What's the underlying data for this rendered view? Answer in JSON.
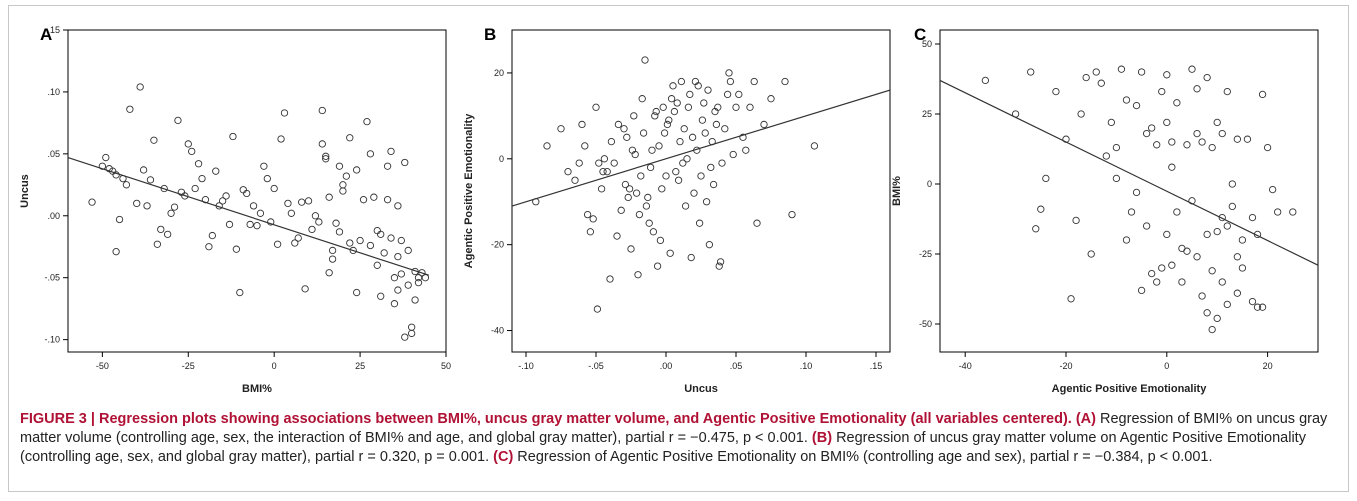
{
  "chart_data": [
    {
      "panel_letter": "A",
      "type": "scatter",
      "xlabel": "BMI%",
      "ylabel": "Uncus",
      "xlim": [
        -60,
        50
      ],
      "ylim": [
        -0.11,
        0.15
      ],
      "xticks": [
        -50,
        -25,
        0,
        25,
        50
      ],
      "yticks": [
        -0.1,
        -0.05,
        0.0,
        0.05,
        0.1,
        0.15
      ],
      "xtick_labels": [
        "-50",
        "-25",
        "0",
        "25",
        "50"
      ],
      "ytick_labels": [
        "-.10",
        "-.05",
        ".00",
        ".05",
        ".10",
        ".15"
      ],
      "fit_line": [
        [
          -60,
          0.047
        ],
        [
          45,
          -0.048
        ]
      ],
      "points": [
        [
          -53,
          0.011
        ],
        [
          -50,
          0.04
        ],
        [
          -49,
          0.047
        ],
        [
          -48,
          0.038
        ],
        [
          -47,
          0.036
        ],
        [
          -46,
          0.033
        ],
        [
          -46,
          -0.029
        ],
        [
          -45,
          -0.003
        ],
        [
          -44,
          0.03
        ],
        [
          -43,
          0.025
        ],
        [
          -42,
          0.086
        ],
        [
          -40,
          0.01
        ],
        [
          -39,
          0.104
        ],
        [
          -38,
          0.037
        ],
        [
          -37,
          0.008
        ],
        [
          -36,
          0.029
        ],
        [
          -35,
          0.061
        ],
        [
          -34,
          -0.023
        ],
        [
          -33,
          -0.011
        ],
        [
          -32,
          0.022
        ],
        [
          -31,
          -0.015
        ],
        [
          -30,
          0.002
        ],
        [
          -29,
          0.007
        ],
        [
          -28,
          0.077
        ],
        [
          -27,
          0.019
        ],
        [
          -26,
          0.016
        ],
        [
          -25,
          0.058
        ],
        [
          -24,
          0.052
        ],
        [
          -23,
          0.022
        ],
        [
          -22,
          0.042
        ],
        [
          -21,
          0.03
        ],
        [
          -20,
          0.013
        ],
        [
          -19,
          -0.025
        ],
        [
          -18,
          -0.016
        ],
        [
          -17,
          0.036
        ],
        [
          -16,
          0.008
        ],
        [
          -15,
          0.012
        ],
        [
          -14,
          0.016
        ],
        [
          -13,
          -0.007
        ],
        [
          -12,
          0.064
        ],
        [
          -11,
          -0.027
        ],
        [
          -10,
          -0.062
        ],
        [
          -9,
          0.021
        ],
        [
          -8,
          0.018
        ],
        [
          -7,
          -0.007
        ],
        [
          -6,
          0.008
        ],
        [
          -5,
          -0.008
        ],
        [
          -4,
          0.002
        ],
        [
          -3,
          0.04
        ],
        [
          -2,
          0.03
        ],
        [
          -1,
          -0.005
        ],
        [
          0,
          0.022
        ],
        [
          1,
          -0.023
        ],
        [
          2,
          0.062
        ],
        [
          3,
          0.083
        ],
        [
          4,
          0.01
        ],
        [
          5,
          0.002
        ],
        [
          6,
          -0.022
        ],
        [
          7,
          -0.018
        ],
        [
          8,
          0.011
        ],
        [
          9,
          -0.059
        ],
        [
          10,
          0.012
        ],
        [
          11,
          -0.011
        ],
        [
          12,
          0.0
        ],
        [
          13,
          -0.005
        ],
        [
          14,
          0.085
        ],
        [
          14,
          0.058
        ],
        [
          15,
          0.048
        ],
        [
          15,
          0.046
        ],
        [
          16,
          -0.046
        ],
        [
          16,
          0.015
        ],
        [
          17,
          -0.028
        ],
        [
          17,
          -0.035
        ],
        [
          18,
          -0.006
        ],
        [
          19,
          0.04
        ],
        [
          19,
          -0.013
        ],
        [
          20,
          0.025
        ],
        [
          20,
          0.02
        ],
        [
          21,
          0.032
        ],
        [
          22,
          0.063
        ],
        [
          22,
          -0.022
        ],
        [
          23,
          -0.028
        ],
        [
          24,
          0.037
        ],
        [
          24,
          -0.062
        ],
        [
          25,
          -0.02
        ],
        [
          26,
          0.013
        ],
        [
          27,
          0.076
        ],
        [
          28,
          0.05
        ],
        [
          28,
          -0.024
        ],
        [
          29,
          0.015
        ],
        [
          30,
          -0.012
        ],
        [
          30,
          -0.04
        ],
        [
          31,
          -0.015
        ],
        [
          31,
          -0.065
        ],
        [
          32,
          -0.03
        ],
        [
          33,
          0.04
        ],
        [
          33,
          0.013
        ],
        [
          34,
          0.052
        ],
        [
          34,
          -0.018
        ],
        [
          35,
          -0.05
        ],
        [
          35,
          -0.071
        ],
        [
          36,
          0.008
        ],
        [
          36,
          -0.033
        ],
        [
          36,
          -0.06
        ],
        [
          37,
          -0.02
        ],
        [
          37,
          -0.047
        ],
        [
          38,
          0.043
        ],
        [
          38,
          -0.098
        ],
        [
          39,
          -0.028
        ],
        [
          39,
          -0.056
        ],
        [
          40,
          -0.095
        ],
        [
          40,
          -0.09
        ],
        [
          41,
          -0.045
        ],
        [
          41,
          -0.068
        ],
        [
          42,
          -0.05
        ],
        [
          42,
          -0.054
        ],
        [
          43,
          -0.046
        ],
        [
          44,
          -0.05
        ]
      ]
    },
    {
      "panel_letter": "B",
      "type": "scatter",
      "xlabel": "Uncus",
      "ylabel": "Agentic Positive Emotionality",
      "xlim": [
        -0.11,
        0.16
      ],
      "ylim": [
        -45,
        30
      ],
      "xticks": [
        -0.1,
        -0.05,
        0.0,
        0.05,
        0.1,
        0.15
      ],
      "yticks": [
        -40,
        -20,
        0,
        20
      ],
      "xtick_labels": [
        "-.10",
        "-.05",
        ".00",
        ".05",
        ".10",
        ".15"
      ],
      "ytick_labels": [
        "-40",
        "-20",
        "0",
        "20"
      ],
      "fit_line": [
        [
          -0.11,
          -11
        ],
        [
          0.16,
          16
        ]
      ],
      "points": [
        [
          -0.093,
          -10
        ],
        [
          -0.085,
          3
        ],
        [
          -0.075,
          7
        ],
        [
          -0.07,
          -3
        ],
        [
          -0.065,
          -5
        ],
        [
          -0.062,
          -1
        ],
        [
          -0.06,
          8
        ],
        [
          -0.058,
          3
        ],
        [
          -0.056,
          -13
        ],
        [
          -0.054,
          -17
        ],
        [
          -0.052,
          -14
        ],
        [
          -0.05,
          12
        ],
        [
          -0.049,
          -35
        ],
        [
          -0.048,
          -1
        ],
        [
          -0.046,
          -7
        ],
        [
          -0.045,
          -3
        ],
        [
          -0.044,
          0
        ],
        [
          -0.042,
          -3
        ],
        [
          -0.04,
          -28
        ],
        [
          -0.039,
          4
        ],
        [
          -0.037,
          -1
        ],
        [
          -0.035,
          -18
        ],
        [
          -0.034,
          8
        ],
        [
          -0.032,
          -12
        ],
        [
          -0.03,
          7
        ],
        [
          -0.029,
          -6
        ],
        [
          -0.028,
          5
        ],
        [
          -0.027,
          -9
        ],
        [
          -0.026,
          -7
        ],
        [
          -0.025,
          -21
        ],
        [
          -0.024,
          2
        ],
        [
          -0.023,
          10
        ],
        [
          -0.022,
          1
        ],
        [
          -0.021,
          -8
        ],
        [
          -0.02,
          -27
        ],
        [
          -0.019,
          -13
        ],
        [
          -0.018,
          -4
        ],
        [
          -0.017,
          14
        ],
        [
          -0.016,
          6
        ],
        [
          -0.015,
          23
        ],
        [
          -0.014,
          -11
        ],
        [
          -0.013,
          -9
        ],
        [
          -0.012,
          -15
        ],
        [
          -0.011,
          -2
        ],
        [
          -0.01,
          2
        ],
        [
          -0.009,
          -17
        ],
        [
          -0.008,
          10
        ],
        [
          -0.007,
          11
        ],
        [
          -0.006,
          -25
        ],
        [
          -0.005,
          3
        ],
        [
          -0.004,
          -19
        ],
        [
          -0.003,
          -7
        ],
        [
          -0.002,
          12
        ],
        [
          -0.001,
          6
        ],
        [
          0.0,
          -4
        ],
        [
          0.001,
          8
        ],
        [
          0.002,
          9
        ],
        [
          0.003,
          -22
        ],
        [
          0.004,
          14
        ],
        [
          0.005,
          17
        ],
        [
          0.006,
          11
        ],
        [
          0.007,
          -3
        ],
        [
          0.008,
          13
        ],
        [
          0.009,
          -5
        ],
        [
          0.01,
          4
        ],
        [
          0.011,
          18
        ],
        [
          0.012,
          -1
        ],
        [
          0.013,
          7
        ],
        [
          0.014,
          -11
        ],
        [
          0.015,
          0
        ],
        [
          0.016,
          12
        ],
        [
          0.017,
          15
        ],
        [
          0.018,
          -23
        ],
        [
          0.019,
          5
        ],
        [
          0.02,
          -8
        ],
        [
          0.021,
          18
        ],
        [
          0.022,
          2
        ],
        [
          0.023,
          17
        ],
        [
          0.024,
          -15
        ],
        [
          0.025,
          -4
        ],
        [
          0.026,
          9
        ],
        [
          0.027,
          13
        ],
        [
          0.028,
          6
        ],
        [
          0.029,
          -10
        ],
        [
          0.03,
          16
        ],
        [
          0.031,
          -20
        ],
        [
          0.032,
          -2
        ],
        [
          0.033,
          4
        ],
        [
          0.034,
          -6
        ],
        [
          0.035,
          11
        ],
        [
          0.036,
          8
        ],
        [
          0.037,
          12
        ],
        [
          0.038,
          -25
        ],
        [
          0.039,
          -24
        ],
        [
          0.04,
          -1
        ],
        [
          0.042,
          7
        ],
        [
          0.044,
          15
        ],
        [
          0.045,
          20
        ],
        [
          0.046,
          18
        ],
        [
          0.048,
          1
        ],
        [
          0.05,
          12
        ],
        [
          0.052,
          15
        ],
        [
          0.055,
          5
        ],
        [
          0.057,
          2
        ],
        [
          0.06,
          12
        ],
        [
          0.063,
          18
        ],
        [
          0.065,
          -15
        ],
        [
          0.07,
          8
        ],
        [
          0.075,
          14
        ],
        [
          0.085,
          18
        ],
        [
          0.09,
          -13
        ],
        [
          0.106,
          3
        ]
      ]
    },
    {
      "panel_letter": "C",
      "type": "scatter",
      "xlabel": "Agentic Positive Emotionality",
      "ylabel": "BMI%",
      "xlim": [
        -45,
        30
      ],
      "ylim": [
        -60,
        55
      ],
      "xticks": [
        -40,
        -20,
        0,
        20
      ],
      "yticks": [
        -50,
        -25,
        0,
        25,
        50
      ],
      "xtick_labels": [
        "-40",
        "-20",
        "0",
        "20"
      ],
      "ytick_labels": [
        "-50",
        "-25",
        "0",
        "25",
        "50"
      ],
      "fit_line": [
        [
          -45,
          37
        ],
        [
          30,
          -29
        ]
      ],
      "points": [
        [
          -36,
          37
        ],
        [
          -30,
          25
        ],
        [
          -27,
          40
        ],
        [
          -26,
          -16
        ],
        [
          -25,
          -9
        ],
        [
          -24,
          2
        ],
        [
          -22,
          33
        ],
        [
          -20,
          16
        ],
        [
          -19,
          -41
        ],
        [
          -18,
          -13
        ],
        [
          -17,
          25
        ],
        [
          -16,
          38
        ],
        [
          -15,
          -25
        ],
        [
          -14,
          40
        ],
        [
          -13,
          36
        ],
        [
          -12,
          10
        ],
        [
          -11,
          22
        ],
        [
          -10,
          2
        ],
        [
          -10,
          13
        ],
        [
          -9,
          41
        ],
        [
          -8,
          30
        ],
        [
          -8,
          -20
        ],
        [
          -7,
          -10
        ],
        [
          -6,
          28
        ],
        [
          -6,
          -3
        ],
        [
          -5,
          40
        ],
        [
          -5,
          -38
        ],
        [
          -4,
          18
        ],
        [
          -4,
          -15
        ],
        [
          -3,
          20
        ],
        [
          -3,
          -32
        ],
        [
          -2,
          14
        ],
        [
          -2,
          -35
        ],
        [
          -1,
          33
        ],
        [
          -1,
          -30
        ],
        [
          0,
          39
        ],
        [
          0,
          22
        ],
        [
          0,
          -18
        ],
        [
          1,
          15
        ],
        [
          1,
          6
        ],
        [
          1,
          -29
        ],
        [
          2,
          29
        ],
        [
          2,
          -10
        ],
        [
          3,
          -23
        ],
        [
          3,
          -35
        ],
        [
          4,
          -24
        ],
        [
          4,
          14
        ],
        [
          5,
          41
        ],
        [
          5,
          -6
        ],
        [
          6,
          34
        ],
        [
          6,
          18
        ],
        [
          6,
          -26
        ],
        [
          7,
          15
        ],
        [
          7,
          -40
        ],
        [
          8,
          38
        ],
        [
          8,
          -18
        ],
        [
          8,
          -46
        ],
        [
          9,
          13
        ],
        [
          9,
          -31
        ],
        [
          9,
          -52
        ],
        [
          10,
          22
        ],
        [
          10,
          -48
        ],
        [
          10,
          -17
        ],
        [
          11,
          18
        ],
        [
          11,
          -12
        ],
        [
          11,
          -35
        ],
        [
          12,
          33
        ],
        [
          12,
          -15
        ],
        [
          12,
          -43
        ],
        [
          13,
          0
        ],
        [
          13,
          -8
        ],
        [
          14,
          16
        ],
        [
          14,
          -26
        ],
        [
          14,
          -39
        ],
        [
          15,
          -30
        ],
        [
          15,
          -20
        ],
        [
          16,
          16
        ],
        [
          17,
          -12
        ],
        [
          17,
          -42
        ],
        [
          18,
          -18
        ],
        [
          18,
          -44
        ],
        [
          19,
          32
        ],
        [
          19,
          -44
        ],
        [
          20,
          13
        ],
        [
          21,
          -2
        ],
        [
          22,
          -10
        ],
        [
          25,
          -10
        ]
      ]
    }
  ],
  "caption": {
    "figure_label": "FIGURE 3 | Regression plots showing associations between BMI%, uncus gray matter volume, and Agentic Positive Emotionality (all variables centered).",
    "a_tag": "(A)",
    "a_text": " Regression of BMI% on uncus gray matter volume (controlling age, sex, the interaction of BMI% and age, and global gray matter), partial r = −0.475, p < 0.001.",
    "b_tag": "(B)",
    "b_text": " Regression of uncus gray matter volume on Agentic Positive Emotionality (controlling age, sex, and global gray matter), partial r = 0.320, p = 0.001.",
    "c_tag": "(C)",
    "c_text": " Regression of Agentic Positive Emotionality on BMI% (controlling age and sex), partial r = −0.384, p < 0.001."
  }
}
